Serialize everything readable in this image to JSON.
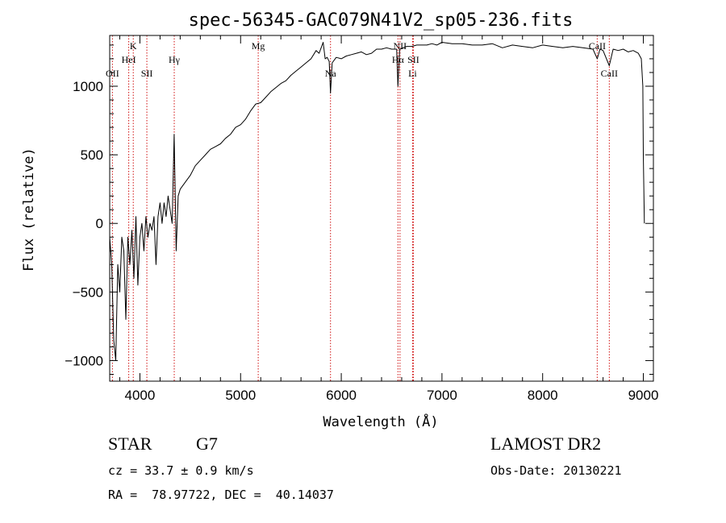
{
  "chart_data": {
    "type": "line",
    "title": "spec-56345-GAC079N41V2_sp05-236.fits",
    "xlabel": "Wavelength (Å)",
    "ylabel": "Flux (relative)",
    "xlim": [
      3700,
      9100
    ],
    "ylim": [
      -1150,
      1370
    ],
    "x_ticks": [
      4000,
      5000,
      6000,
      7000,
      8000,
      9000
    ],
    "y_ticks": [
      -1000,
      -500,
      0,
      500,
      1000
    ],
    "x_tick_labels": [
      "4000",
      "5000",
      "6000",
      "7000",
      "8000",
      "9000"
    ],
    "y_tick_labels": [
      "−1000",
      "−500",
      "0",
      "500",
      "1000"
    ],
    "grid": false,
    "series": [
      {
        "x": [
          3700,
          3720,
          3740,
          3760,
          3780,
          3800,
          3820,
          3840,
          3860,
          3880,
          3900,
          3920,
          3940,
          3960,
          3980,
          4000,
          4020,
          4040,
          4060,
          4080,
          4100,
          4120,
          4140,
          4160,
          4180,
          4200,
          4220,
          4240,
          4260,
          4280,
          4300,
          4320,
          4340,
          4360,
          4380,
          4400,
          4450,
          4500,
          4550,
          4600,
          4650,
          4700,
          4750,
          4800,
          4850,
          4900,
          4950,
          5000,
          5050,
          5100,
          5150,
          5200,
          5250,
          5300,
          5350,
          5400,
          5450,
          5500,
          5550,
          5600,
          5650,
          5700,
          5750,
          5780,
          5800,
          5820,
          5840,
          5860,
          5880,
          5893,
          5910,
          5950,
          6000,
          6050,
          6100,
          6150,
          6200,
          6250,
          6300,
          6350,
          6400,
          6450,
          6500,
          6550,
          6563,
          6580,
          6650,
          6700,
          6750,
          6800,
          6850,
          6900,
          6950,
          7000,
          7100,
          7200,
          7300,
          7400,
          7500,
          7600,
          7700,
          7800,
          7900,
          8000,
          8100,
          8200,
          8300,
          8400,
          8500,
          8542,
          8570,
          8600,
          8662,
          8700,
          8750,
          8800,
          8850,
          8900,
          8950,
          8980,
          8995,
          9000,
          9010
        ],
        "y": [
          -100,
          -300,
          -850,
          -1000,
          -300,
          -500,
          -100,
          -200,
          -700,
          -100,
          -300,
          -50,
          -400,
          50,
          -450,
          -100,
          0,
          -200,
          50,
          -100,
          0,
          -50,
          50,
          -300,
          50,
          150,
          0,
          150,
          50,
          200,
          100,
          0,
          650,
          -200,
          200,
          250,
          300,
          350,
          420,
          460,
          500,
          540,
          560,
          580,
          620,
          650,
          700,
          720,
          760,
          820,
          870,
          880,
          920,
          960,
          990,
          1020,
          1040,
          1080,
          1110,
          1140,
          1170,
          1200,
          1260,
          1240,
          1280,
          1320,
          1200,
          1210,
          1180,
          950,
          1170,
          1210,
          1200,
          1220,
          1230,
          1240,
          1250,
          1230,
          1240,
          1270,
          1270,
          1280,
          1270,
          1270,
          1000,
          1270,
          1290,
          1290,
          1300,
          1300,
          1300,
          1310,
          1300,
          1320,
          1310,
          1310,
          1300,
          1300,
          1310,
          1280,
          1300,
          1290,
          1280,
          1300,
          1290,
          1280,
          1290,
          1280,
          1270,
          1200,
          1270,
          1260,
          1150,
          1270,
          1260,
          1270,
          1250,
          1260,
          1240,
          1200,
          1000,
          500,
          0
        ]
      }
    ],
    "line_markers": [
      {
        "name": "OII",
        "x": 3727,
        "label_pos": "low"
      },
      {
        "name": "K",
        "x": 3934,
        "label_pos": "top"
      },
      {
        "name": "HeI",
        "x": 3889,
        "label_pos": "mid"
      },
      {
        "name": "SII",
        "x": 4069,
        "label_pos": "low"
      },
      {
        "name": "Hγ",
        "x": 4341,
        "label_pos": "mid"
      },
      {
        "name": "Mg",
        "x": 5175,
        "label_pos": "top"
      },
      {
        "name": "Na",
        "x": 5893,
        "label_pos": "low"
      },
      {
        "name": "NII",
        "x": 6583,
        "label_pos": "top"
      },
      {
        "name": "Hα",
        "x": 6563,
        "label_pos": "mid"
      },
      {
        "name": "SII",
        "x": 6716,
        "label_pos": "mid"
      },
      {
        "name": "Li",
        "x": 6708,
        "label_pos": "low"
      },
      {
        "name": "CaII",
        "x": 8542,
        "label_pos": "top"
      },
      {
        "name": "CaII",
        "x": 8662,
        "label_pos": "low"
      }
    ]
  },
  "info": {
    "object_class": "STAR",
    "subclass": "G7",
    "survey": "LAMOST DR2",
    "redshift": "cz = 33.7 ± 0.9 km/s",
    "obs_date": "Obs-Date: 20130221",
    "coords": "RA =  78.97722, DEC =  40.14037"
  },
  "colors": {
    "spectrum": "#000000",
    "line_marker": "#d01010",
    "axis": "#000000",
    "background": "#ffffff"
  }
}
